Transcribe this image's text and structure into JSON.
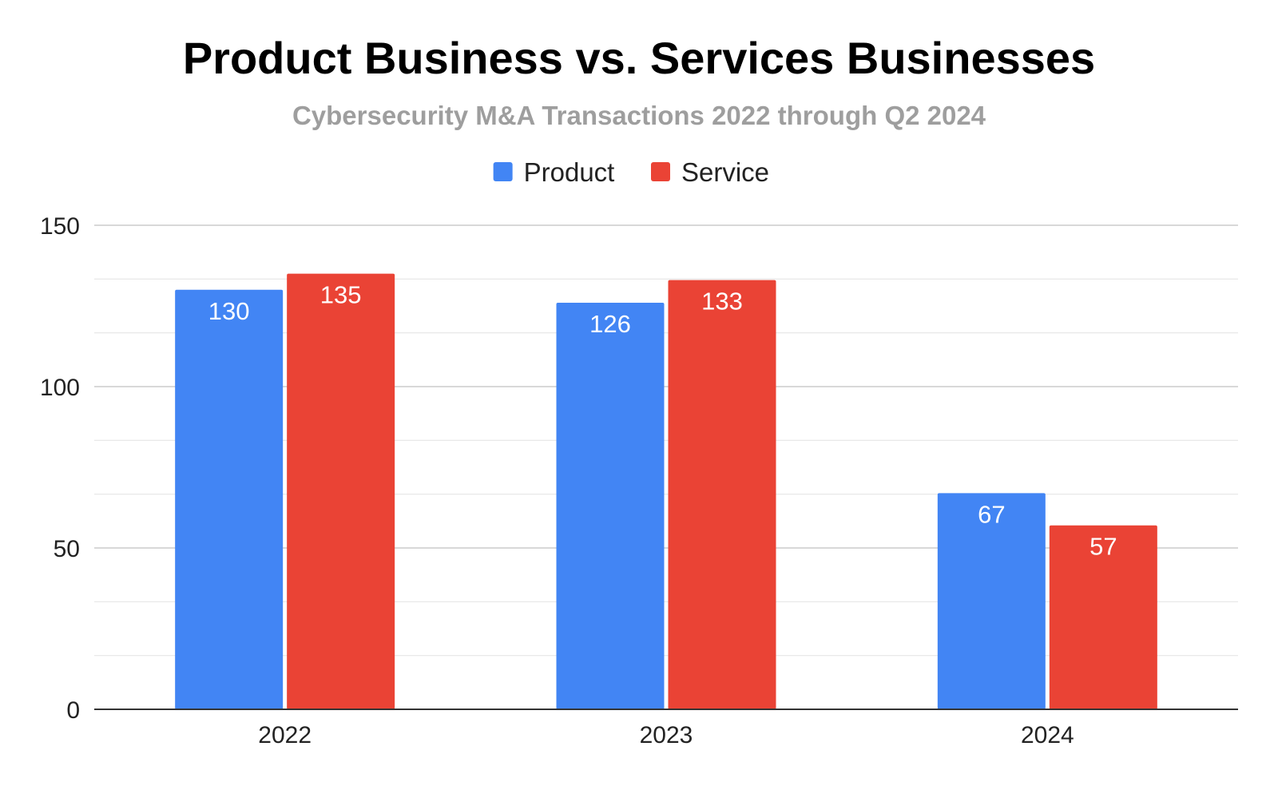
{
  "chart_data": {
    "type": "bar",
    "title": "Product Business vs. Services Businesses",
    "subtitle": "Cybersecurity M&A Transactions 2022 through Q2 2024",
    "categories": [
      "2022",
      "2023",
      "2024"
    ],
    "series": [
      {
        "name": "Product",
        "values": [
          130,
          126,
          67
        ],
        "color": "#4285F4"
      },
      {
        "name": "Service",
        "values": [
          135,
          133,
          57
        ],
        "color": "#EA4335"
      }
    ],
    "xlabel": "",
    "ylabel": "",
    "ylim": [
      0,
      150
    ],
    "yticks": [
      0,
      50,
      100,
      150
    ],
    "grid": true,
    "legend_position": "top-center",
    "data_labels": "inside-end"
  }
}
